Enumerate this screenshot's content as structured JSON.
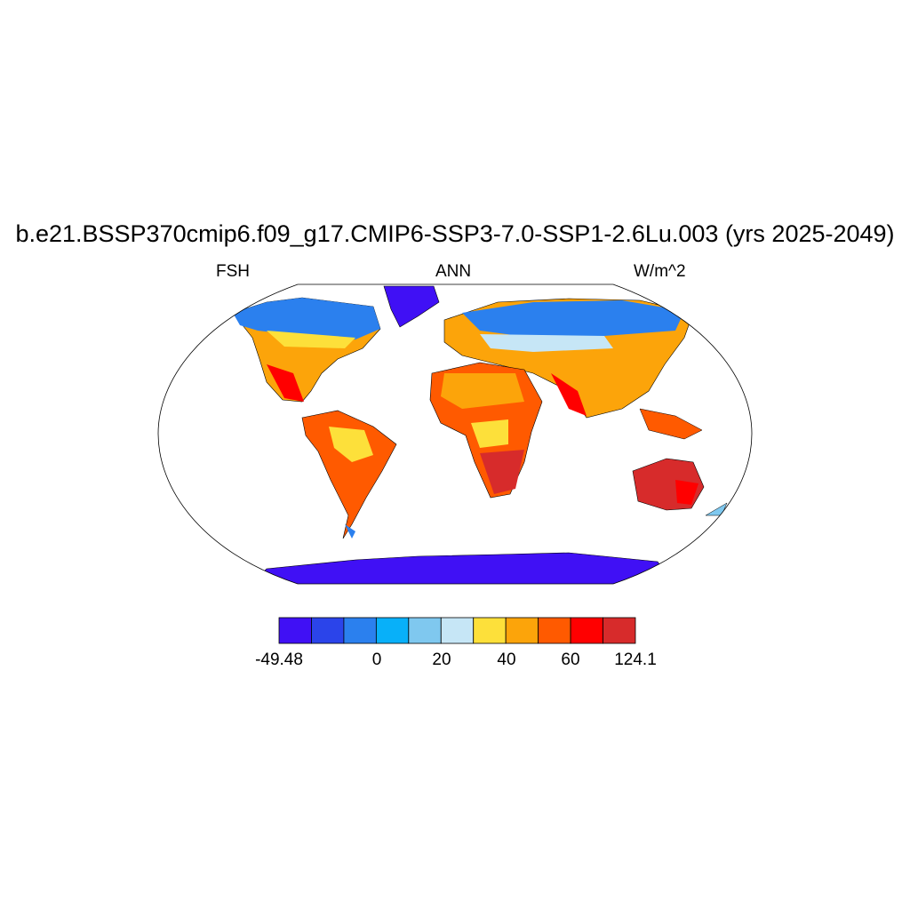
{
  "title": "b.e21.BSSP370cmip6.f09_g17.CMIP6-SSP3-7.0-SSP1-2.6Lu.003 (yrs 2025-2049)",
  "subtitle_left": "FSH",
  "subtitle_center": "ANN",
  "subtitle_right": "W/m^2",
  "colorbar": {
    "colors": [
      "#4010f5",
      "#2b44ea",
      "#2b80ee",
      "#08b0f9",
      "#7fc8ef",
      "#c6e6f6",
      "#fde03a",
      "#fca40a",
      "#ff5a00",
      "#ff0000",
      "#d72b2b"
    ],
    "labels": [
      "-49.48",
      "0",
      "20",
      "40",
      "60",
      "124.1"
    ]
  }
}
